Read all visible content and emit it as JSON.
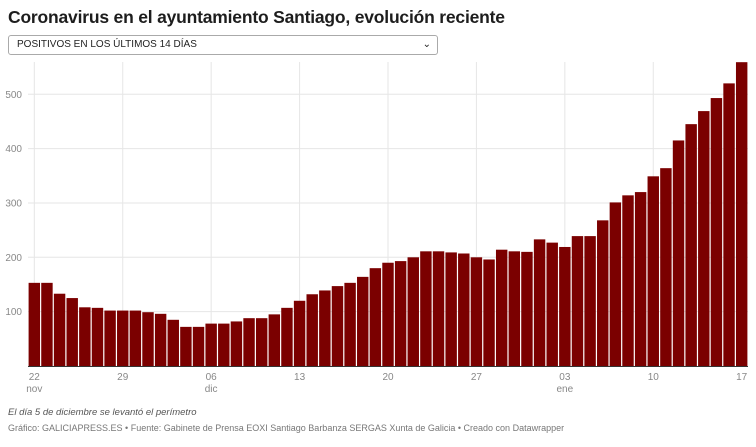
{
  "header": {
    "title": "Coronavirus en el ayuntamiento Santiago, evolución reciente"
  },
  "selector": {
    "selected": "POSITIVOS EN LOS ÚLTIMOS 14 DÍAS",
    "icon": "chevron-down-icon"
  },
  "footer": {
    "note": "El día 5 de diciembre se levantó el perímetro",
    "credit": "Gráfico: GALICIAPRESS.ES • Fuente: Gabinete de Prensa EOXI Santiago Barbanza SERGAS Xunta de Galicia • Creado con Datawrapper"
  },
  "chart_data": {
    "type": "bar",
    "title": "",
    "xlabel": "",
    "ylabel": "",
    "ylim": [
      0,
      560
    ],
    "grid": true,
    "bar_color": "#7b0000",
    "yticks": [
      100,
      200,
      300,
      400,
      500
    ],
    "xticks": [
      {
        "index": 0,
        "label": "22",
        "sub": "nov"
      },
      {
        "index": 7,
        "label": "29",
        "sub": ""
      },
      {
        "index": 14,
        "label": "06",
        "sub": "dic"
      },
      {
        "index": 21,
        "label": "13",
        "sub": ""
      },
      {
        "index": 28,
        "label": "20",
        "sub": ""
      },
      {
        "index": 35,
        "label": "27",
        "sub": ""
      },
      {
        "index": 42,
        "label": "03",
        "sub": "ene"
      },
      {
        "index": 49,
        "label": "10",
        "sub": ""
      },
      {
        "index": 56,
        "label": "17",
        "sub": ""
      }
    ],
    "categories": [
      "22 nov",
      "23 nov",
      "24 nov",
      "25 nov",
      "26 nov",
      "27 nov",
      "28 nov",
      "29 nov",
      "30 nov",
      "1 dic",
      "2 dic",
      "3 dic",
      "4 dic",
      "5 dic",
      "6 dic",
      "7 dic",
      "8 dic",
      "9 dic",
      "10 dic",
      "11 dic",
      "12 dic",
      "13 dic",
      "14 dic",
      "15 dic",
      "16 dic",
      "17 dic",
      "18 dic",
      "19 dic",
      "20 dic",
      "21 dic",
      "22 dic",
      "23 dic",
      "24 dic",
      "25 dic",
      "26 dic",
      "27 dic",
      "28 dic",
      "29 dic",
      "30 dic",
      "31 dic",
      "1 ene",
      "2 ene",
      "3 ene",
      "4 ene",
      "5 ene",
      "6 ene",
      "7 ene",
      "8 ene",
      "9 ene",
      "10 ene",
      "11 ene",
      "12 ene",
      "13 ene",
      "14 ene",
      "15 ene",
      "16 ene",
      "17 ene"
    ],
    "values": [
      153,
      153,
      133,
      125,
      108,
      107,
      102,
      102,
      102,
      99,
      96,
      85,
      72,
      72,
      78,
      78,
      82,
      88,
      88,
      95,
      107,
      120,
      132,
      139,
      147,
      153,
      164,
      180,
      190,
      193,
      200,
      211,
      211,
      209,
      207,
      200,
      196,
      214,
      211,
      210,
      233,
      227,
      219,
      239,
      239,
      268,
      301,
      314,
      320,
      349,
      364,
      415,
      445,
      469,
      493,
      520,
      559
    ]
  }
}
